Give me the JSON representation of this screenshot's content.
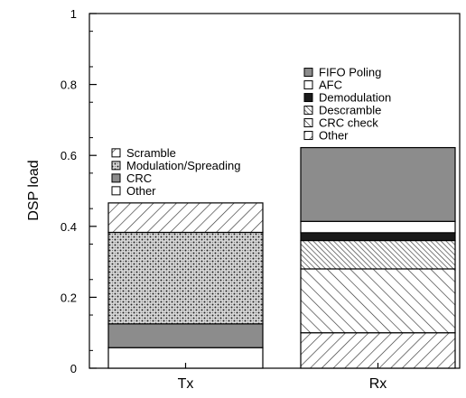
{
  "chart_data": {
    "type": "bar",
    "stacked": true,
    "title": "",
    "xlabel": "",
    "ylabel": "DSP load",
    "ylim": [
      0,
      1
    ],
    "yticks": [
      "0",
      "0.2",
      "0.4",
      "0.6",
      "0.8",
      "1"
    ],
    "grid": false,
    "categories": [
      "Tx",
      "Rx"
    ],
    "bars": [
      {
        "category": "Tx",
        "legend_placement": "above-bar",
        "segments": [
          {
            "name": "Other",
            "value": 0.058,
            "fill": "white"
          },
          {
            "name": "CRC",
            "value": 0.067,
            "fill": "gray"
          },
          {
            "name": "Modulation/Spreading",
            "value": 0.258,
            "fill": "dots"
          },
          {
            "name": "Scramble",
            "value": 0.083,
            "fill": "hatch-back"
          }
        ],
        "legend": [
          "Scramble",
          "Modulation/Spreading",
          "CRC",
          "Other"
        ]
      },
      {
        "category": "Rx",
        "legend_placement": "above-bar",
        "segments": [
          {
            "name": "Other",
            "value": 0.1,
            "fill": "hatch-back"
          },
          {
            "name": "CRC check",
            "value": 0.18,
            "fill": "hatch-fwd"
          },
          {
            "name": "Descramble",
            "value": 0.08,
            "fill": "hatch-dense"
          },
          {
            "name": "Demodulation",
            "value": 0.022,
            "fill": "black"
          },
          {
            "name": "AFC",
            "value": 0.032,
            "fill": "white"
          },
          {
            "name": "FIFO Poling",
            "value": 0.208,
            "fill": "gray"
          }
        ],
        "legend": [
          "FIFO Poling",
          "AFC",
          "Demodulation",
          "Descramble",
          "CRC check",
          "Other"
        ]
      }
    ]
  }
}
